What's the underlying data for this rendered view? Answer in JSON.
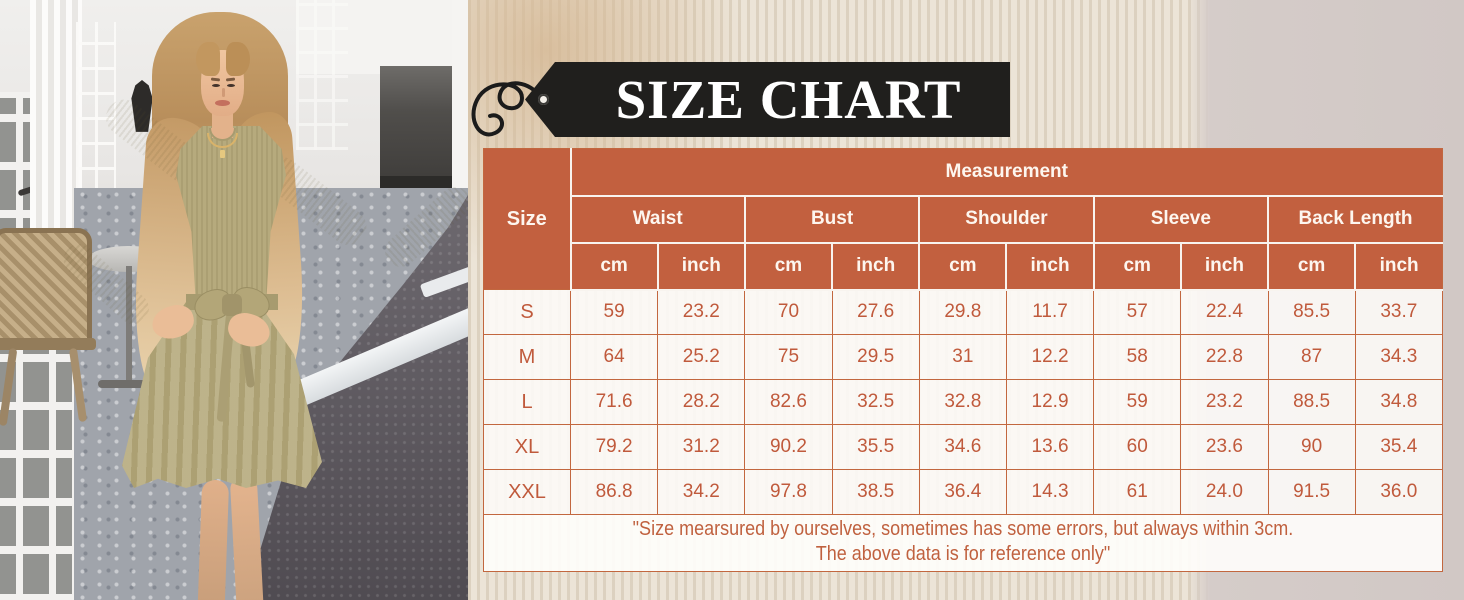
{
  "banner": {
    "title": "SIZE CHART"
  },
  "table": {
    "corner_label": "Size",
    "measurement_label": "Measurement",
    "groups": [
      {
        "label": "Waist"
      },
      {
        "label": "Bust"
      },
      {
        "label": "Shoulder"
      },
      {
        "label": "Sleeve"
      },
      {
        "label": "Back Length"
      }
    ],
    "unit_headers": [
      "cm",
      "inch"
    ],
    "rows": [
      {
        "size": "S",
        "values": [
          "59",
          "23.2",
          "70",
          "27.6",
          "29.8",
          "11.7",
          "57",
          "22.4",
          "85.5",
          "33.7"
        ]
      },
      {
        "size": "M",
        "values": [
          "64",
          "25.2",
          "75",
          "29.5",
          "31",
          "12.2",
          "58",
          "22.8",
          "87",
          "34.3"
        ]
      },
      {
        "size": "L",
        "values": [
          "71.6",
          "28.2",
          "82.6",
          "32.5",
          "32.8",
          "12.9",
          "59",
          "23.2",
          "88.5",
          "34.8"
        ]
      },
      {
        "size": "XL",
        "values": [
          "79.2",
          "31.2",
          "90.2",
          "35.5",
          "34.6",
          "13.6",
          "60",
          "23.6",
          "90",
          "35.4"
        ]
      },
      {
        "size": "XXL",
        "values": [
          "86.8",
          "34.2",
          "97.8",
          "38.5",
          "36.4",
          "14.3",
          "61",
          "24.0",
          "91.5",
          "36.0"
        ]
      }
    ],
    "note_line1": "\"Size mearsured by ourselves, sometimes has some errors, but always within 3cm.",
    "note_line2": "The above data is for reference only\""
  },
  "colors": {
    "header_bg": "#c2603f",
    "table_text": "#c05a3c",
    "cell_border": "#c2673f",
    "cell_bg": "#faf7f4",
    "tag_bg": "#201f1d",
    "tag_text": "#ffffff",
    "dress_khaki": "#b6aa7d"
  },
  "chart_data": {
    "type": "table",
    "title": "SIZE CHART",
    "columns": [
      "Size",
      "Waist cm",
      "Waist inch",
      "Bust cm",
      "Bust inch",
      "Shoulder cm",
      "Shoulder inch",
      "Sleeve cm",
      "Sleeve inch",
      "Back Length cm",
      "Back Length inch"
    ],
    "rows": [
      [
        "S",
        "59",
        "23.2",
        "70",
        "27.6",
        "29.8",
        "11.7",
        "57",
        "22.4",
        "85.5",
        "33.7"
      ],
      [
        "M",
        "64",
        "25.2",
        "75",
        "29.5",
        "31",
        "12.2",
        "58",
        "22.8",
        "87",
        "34.3"
      ],
      [
        "L",
        "71.6",
        "28.2",
        "82.6",
        "32.5",
        "32.8",
        "12.9",
        "59",
        "23.2",
        "88.5",
        "34.8"
      ],
      [
        "XL",
        "79.2",
        "31.2",
        "90.2",
        "35.5",
        "34.6",
        "13.6",
        "60",
        "23.6",
        "90",
        "35.4"
      ],
      [
        "XXL",
        "86.8",
        "34.2",
        "97.8",
        "38.5",
        "36.4",
        "14.3",
        "61",
        "24.0",
        "91.5",
        "36.0"
      ]
    ],
    "note": "\"Size mearsured by ourselves, sometimes has some errors, but always within 3cm. The above data is for reference only\""
  }
}
